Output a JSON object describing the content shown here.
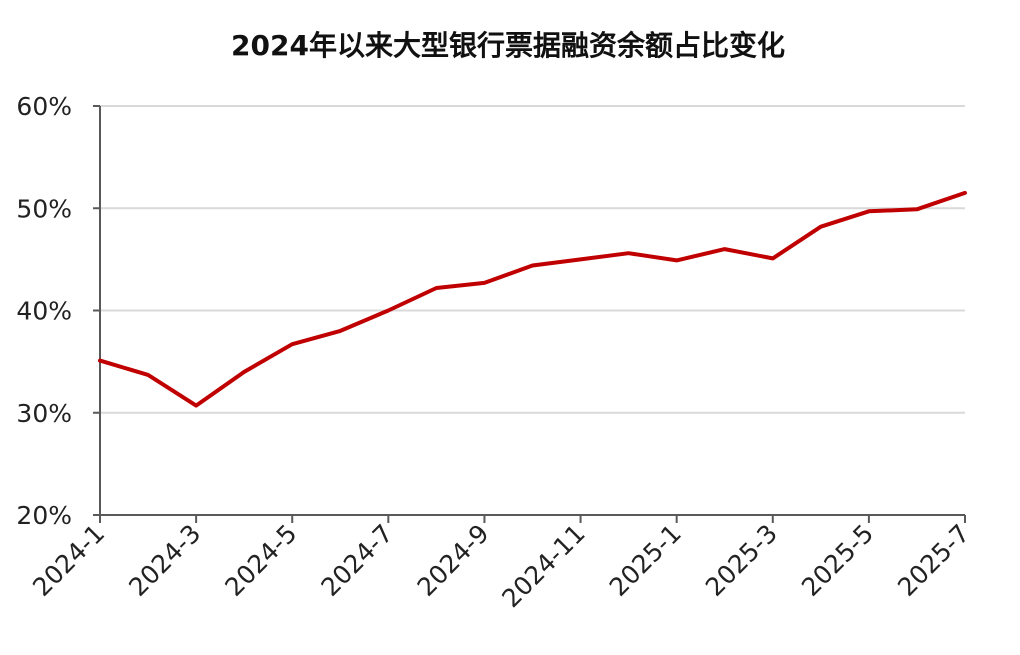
{
  "chart_data": {
    "type": "line",
    "title": "2024年以来大型银行票据融资余额占比变化",
    "xlabel": "",
    "ylabel": "",
    "x": [
      "2024-1",
      "2024-2",
      "2024-3",
      "2024-4",
      "2024-5",
      "2024-6",
      "2024-7",
      "2024-8",
      "2024-9",
      "2024-10",
      "2024-11",
      "2024-12",
      "2025-1",
      "2025-2",
      "2025-3",
      "2025-4",
      "2025-5",
      "2025-6",
      "2025-7"
    ],
    "x_tick_labels": [
      "2024-1",
      "2024-3",
      "2024-5",
      "2024-7",
      "2024-9",
      "2024-11",
      "2025-1",
      "2025-3",
      "2025-5",
      "2025-7"
    ],
    "series": [
      {
        "values": [
          35.1,
          33.7,
          30.7,
          34.0,
          36.7,
          38.0,
          40.0,
          42.2,
          42.7,
          44.4,
          45.0,
          45.6,
          44.9,
          46.0,
          45.1,
          48.2,
          49.7,
          49.9,
          51.5
        ],
        "color": "#c00000"
      }
    ],
    "ylim": [
      20,
      60
    ],
    "y_ticks": [
      20,
      30,
      40,
      50,
      60
    ],
    "y_tick_format": "percent",
    "grid": "horizontal",
    "legend": "none"
  }
}
